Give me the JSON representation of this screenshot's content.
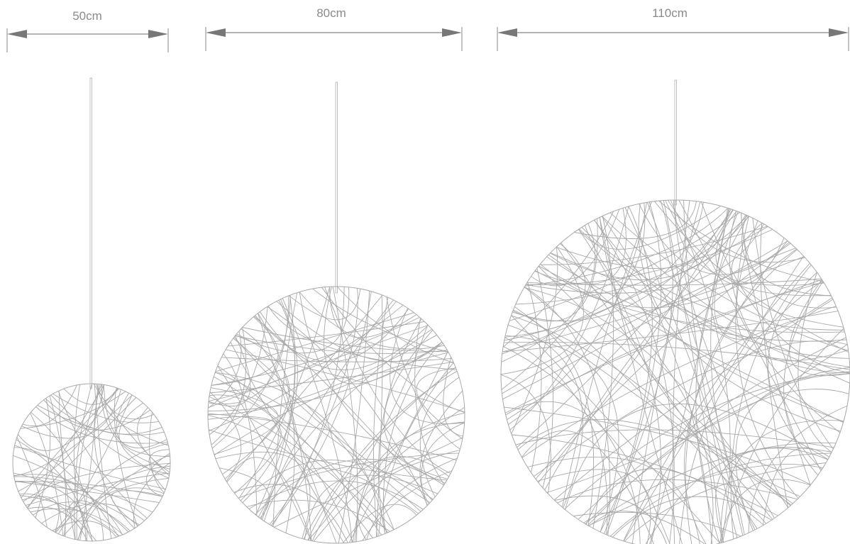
{
  "lamps": [
    {
      "size_label": "50cm"
    },
    {
      "size_label": "80cm"
    },
    {
      "size_label": "110cm"
    }
  ],
  "colors": {
    "line": "#a8a8a8",
    "arrow": "#777777",
    "label": "#8a8a8a"
  }
}
